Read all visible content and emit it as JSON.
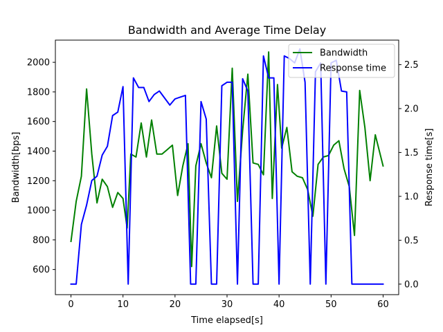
{
  "chart_data": {
    "type": "line",
    "title": "Bandwidth and Average Time Delay",
    "xlabel": "Time elapsed[s]",
    "ylabel_left": "Bandwidth[bps]",
    "ylabel_right": "Response time[s]",
    "xlim": [
      -3,
      63
    ],
    "ylim_left": [
      430,
      2150
    ],
    "ylim_right": [
      -0.12,
      2.78
    ],
    "xticks": [
      0,
      10,
      20,
      30,
      40,
      50,
      60
    ],
    "yticks_left": [
      600,
      800,
      1000,
      1200,
      1400,
      1600,
      1800,
      2000
    ],
    "yticks_right": [
      0.0,
      0.5,
      1.0,
      1.5,
      2.0,
      2.5
    ],
    "ytick_labels_right": [
      "0.0",
      "0.5",
      "1.0",
      "1.5",
      "2.0",
      "2.5"
    ],
    "grid": false,
    "legend_position": "top-right",
    "series": [
      {
        "name": "Bandwidth",
        "axis": "left",
        "color": "#008000",
        "points": [
          [
            0,
            790
          ],
          [
            1,
            1060
          ],
          [
            2,
            1230
          ],
          [
            3,
            1820
          ],
          [
            4,
            1380
          ],
          [
            5,
            1050
          ],
          [
            6,
            1210
          ],
          [
            7,
            1160
          ],
          [
            8,
            1020
          ],
          [
            9,
            1120
          ],
          [
            10,
            1080
          ],
          [
            10.8,
            880
          ],
          [
            11.5,
            1380
          ],
          [
            12.5,
            1360
          ],
          [
            13.5,
            1590
          ],
          [
            14.5,
            1360
          ],
          [
            15.5,
            1610
          ],
          [
            16.5,
            1380
          ],
          [
            17.5,
            1380
          ],
          [
            18.5,
            1410
          ],
          [
            19.5,
            1440
          ],
          [
            20.5,
            1100
          ],
          [
            21.5,
            1300
          ],
          [
            22.5,
            1450
          ],
          [
            23.2,
            620
          ],
          [
            24,
            1300
          ],
          [
            25,
            1450
          ],
          [
            26,
            1320
          ],
          [
            27,
            1220
          ],
          [
            28,
            1570
          ],
          [
            29,
            1250
          ],
          [
            30,
            1210
          ],
          [
            31,
            1960
          ],
          [
            32,
            1060
          ],
          [
            33,
            1540
          ],
          [
            34,
            1920
          ],
          [
            35,
            1320
          ],
          [
            36,
            1310
          ],
          [
            37,
            1240
          ],
          [
            38,
            2070
          ],
          [
            38.7,
            1080
          ],
          [
            39.7,
            1850
          ],
          [
            40.5,
            1420
          ],
          [
            41.5,
            1560
          ],
          [
            42.5,
            1260
          ],
          [
            43.5,
            1230
          ],
          [
            44.5,
            1220
          ],
          [
            45.5,
            1140
          ],
          [
            46.5,
            960
          ],
          [
            47.5,
            1310
          ],
          [
            48.5,
            1360
          ],
          [
            49.5,
            1370
          ],
          [
            50.5,
            1440
          ],
          [
            51.5,
            1470
          ],
          [
            52.5,
            1280
          ],
          [
            53.5,
            1160
          ],
          [
            54.5,
            830
          ],
          [
            55.5,
            1810
          ],
          [
            56.5,
            1560
          ],
          [
            57.5,
            1200
          ],
          [
            58.5,
            1510
          ],
          [
            60,
            1300
          ]
        ]
      },
      {
        "name": "Response time",
        "axis": "right",
        "color": "#0000ff",
        "points": [
          [
            0,
            0.0
          ],
          [
            1,
            0.0
          ],
          [
            2,
            0.68
          ],
          [
            3,
            0.9
          ],
          [
            4,
            1.18
          ],
          [
            5,
            1.23
          ],
          [
            6,
            1.47
          ],
          [
            7,
            1.57
          ],
          [
            8,
            1.92
          ],
          [
            9,
            1.96
          ],
          [
            10,
            2.25
          ],
          [
            11,
            0.0
          ],
          [
            12,
            2.35
          ],
          [
            13,
            2.24
          ],
          [
            14,
            2.24
          ],
          [
            15,
            2.08
          ],
          [
            16,
            2.16
          ],
          [
            17,
            2.2
          ],
          [
            18,
            2.12
          ],
          [
            19,
            2.04
          ],
          [
            20,
            2.11
          ],
          [
            21,
            2.13
          ],
          [
            22,
            2.15
          ],
          [
            23,
            0.0
          ],
          [
            24,
            0.0
          ],
          [
            25,
            2.08
          ],
          [
            26,
            1.88
          ],
          [
            27,
            0.0
          ],
          [
            28,
            0.0
          ],
          [
            29,
            2.26
          ],
          [
            30,
            2.3
          ],
          [
            31,
            2.3
          ],
          [
            32,
            0.0
          ],
          [
            33,
            2.34
          ],
          [
            34,
            2.2
          ],
          [
            35,
            0.0
          ],
          [
            36,
            0.0
          ],
          [
            37,
            2.6
          ],
          [
            38,
            2.35
          ],
          [
            39,
            2.35
          ],
          [
            40,
            0.0
          ],
          [
            41,
            2.6
          ],
          [
            42,
            2.57
          ],
          [
            43,
            2.52
          ],
          [
            44,
            2.68
          ],
          [
            45,
            2.3
          ],
          [
            46,
            0.0
          ],
          [
            47,
            2.42
          ],
          [
            48,
            2.52
          ],
          [
            49,
            0.0
          ],
          [
            50,
            2.52
          ],
          [
            51,
            2.55
          ],
          [
            52,
            2.2
          ],
          [
            53,
            2.19
          ],
          [
            54,
            0.0
          ],
          [
            55,
            0.0
          ],
          [
            60,
            0.0
          ]
        ]
      }
    ]
  }
}
